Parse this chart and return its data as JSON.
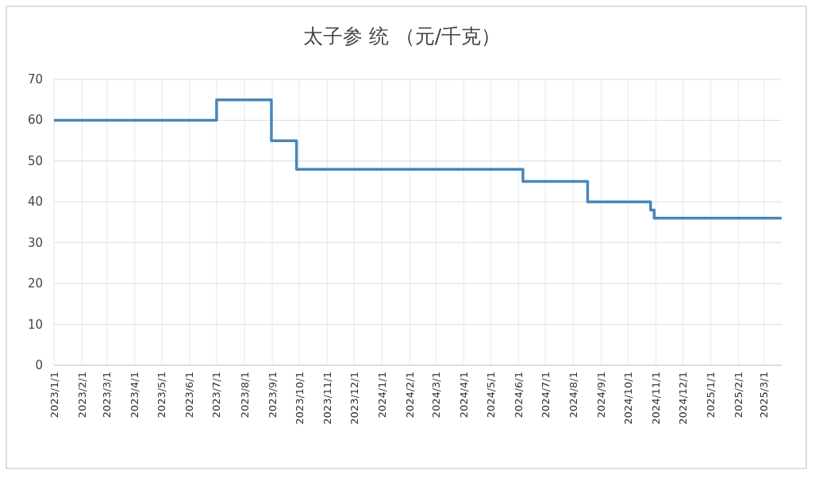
{
  "chart_data": {
    "type": "step",
    "title": "太子参 统 （元/千克）",
    "x": [
      "2023-01-01",
      "2023-07-01",
      "2023-08-31",
      "2023-09-28",
      "2024-06-06",
      "2024-08-17",
      "2024-10-26",
      "2024-10-30",
      "2025-03-21"
    ],
    "values": [
      60,
      65,
      55,
      48,
      45,
      40,
      38,
      36,
      36
    ],
    "color": "#4a86b8",
    "xlim": [
      "2023-01-01",
      "2025-03-21"
    ],
    "xticks": [
      {
        "value": "2023-01-01",
        "label": "2023/1/1"
      },
      {
        "value": "2023-02-01",
        "label": "2023/2/1"
      },
      {
        "value": "2023-03-01",
        "label": "2023/3/1"
      },
      {
        "value": "2023-04-01",
        "label": "2023/4/1"
      },
      {
        "value": "2023-05-01",
        "label": "2023/5/1"
      },
      {
        "value": "2023-06-01",
        "label": "2023/6/1"
      },
      {
        "value": "2023-07-01",
        "label": "2023/7/1"
      },
      {
        "value": "2023-08-01",
        "label": "2023/8/1"
      },
      {
        "value": "2023-09-01",
        "label": "2023/9/1"
      },
      {
        "value": "2023-10-01",
        "label": "2023/10/1"
      },
      {
        "value": "2023-11-01",
        "label": "2023/11/1"
      },
      {
        "value": "2023-12-01",
        "label": "2023/12/1"
      },
      {
        "value": "2024-01-01",
        "label": "2024/1/1"
      },
      {
        "value": "2024-02-01",
        "label": "2024/2/1"
      },
      {
        "value": "2024-03-01",
        "label": "2024/3/1"
      },
      {
        "value": "2024-04-01",
        "label": "2024/4/1"
      },
      {
        "value": "2024-05-01",
        "label": "2024/5/1"
      },
      {
        "value": "2024-06-01",
        "label": "2024/6/1"
      },
      {
        "value": "2024-07-01",
        "label": "2024/7/1"
      },
      {
        "value": "2024-08-01",
        "label": "2024/8/1"
      },
      {
        "value": "2024-09-01",
        "label": "2024/9/1"
      },
      {
        "value": "2024-10-01",
        "label": "2024/10/1"
      },
      {
        "value": "2024-11-01",
        "label": "2024/11/1"
      },
      {
        "value": "2024-12-01",
        "label": "2024/12/1"
      },
      {
        "value": "2025-01-01",
        "label": "2025/1/1"
      },
      {
        "value": "2025-02-01",
        "label": "2025/2/1"
      },
      {
        "value": "2025-03-01",
        "label": "2025/3/1"
      }
    ],
    "ylim": [
      0,
      70
    ],
    "yticks": [
      0,
      10,
      20,
      30,
      40,
      50,
      60,
      70
    ],
    "grid": true
  }
}
